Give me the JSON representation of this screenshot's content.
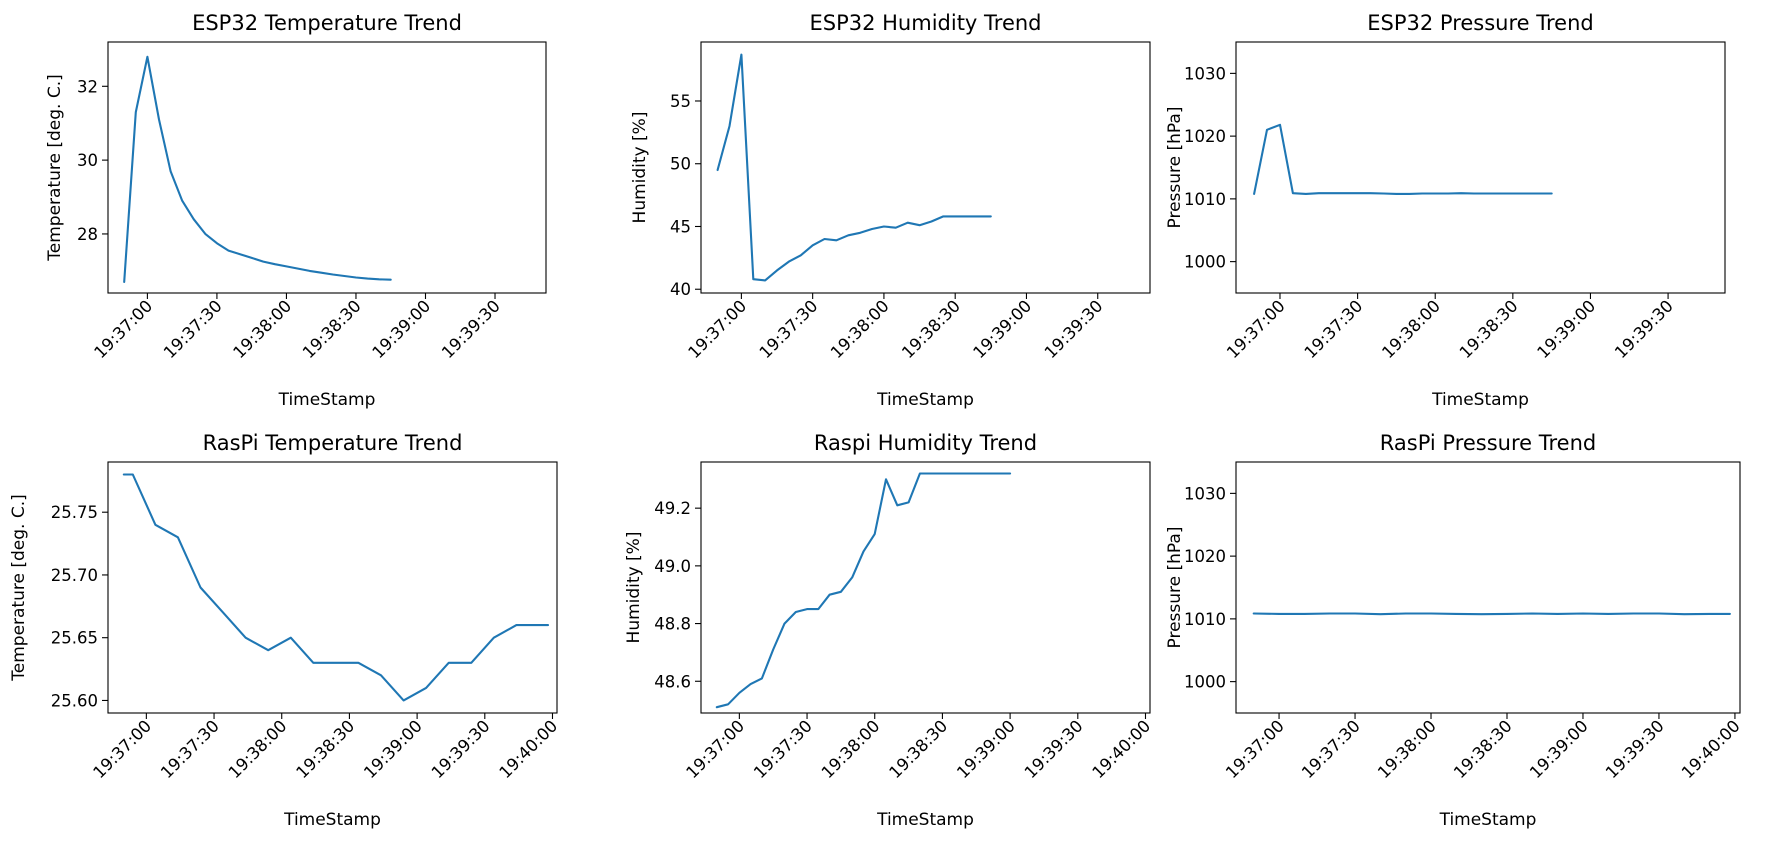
{
  "figure": {
    "background": "#ffffff",
    "line_color": "#1f77b4"
  },
  "chart_data": [
    {
      "type": "line",
      "title": "ESP32 Temperature Trend",
      "xlabel": "TimeStamp",
      "ylabel": "Temperature [deg. C.]",
      "xlim": [
        "19:36:43",
        "19:39:52"
      ],
      "ylim": [
        26.4,
        33.2
      ],
      "xticks": [
        "19:37:00",
        "19:37:30",
        "19:38:00",
        "19:38:30",
        "19:39:00",
        "19:39:30"
      ],
      "yticks": [
        28,
        30,
        32
      ],
      "grid": false,
      "series": [
        {
          "x": [
            "19:36:50",
            "19:36:55",
            "19:37:00",
            "19:37:05",
            "19:37:10",
            "19:37:15",
            "19:37:20",
            "19:37:25",
            "19:37:30",
            "19:37:35",
            "19:37:40",
            "19:37:45",
            "19:37:50",
            "19:37:55",
            "19:38:00",
            "19:38:05",
            "19:38:10",
            "19:38:15",
            "19:38:20",
            "19:38:25",
            "19:38:30",
            "19:38:35",
            "19:38:40",
            "19:38:45"
          ],
          "y": [
            26.7,
            31.3,
            32.8,
            31.1,
            29.7,
            28.9,
            28.4,
            28.0,
            27.75,
            27.55,
            27.45,
            27.35,
            27.25,
            27.18,
            27.12,
            27.06,
            27.0,
            26.95,
            26.9,
            26.86,
            26.82,
            26.79,
            26.77,
            26.76
          ]
        }
      ]
    },
    {
      "type": "line",
      "title": "ESP32 Humidity Trend",
      "xlabel": "TimeStamp",
      "ylabel": "Humidity [%]",
      "xlim": [
        "19:36:43",
        "19:39:52"
      ],
      "ylim": [
        39.7,
        59.7
      ],
      "xticks": [
        "19:37:00",
        "19:37:30",
        "19:38:00",
        "19:38:30",
        "19:39:00",
        "19:39:30"
      ],
      "yticks": [
        40,
        45,
        50,
        55
      ],
      "grid": false,
      "series": [
        {
          "x": [
            "19:36:50",
            "19:36:55",
            "19:37:00",
            "19:37:05",
            "19:37:10",
            "19:37:15",
            "19:37:20",
            "19:37:25",
            "19:37:30",
            "19:37:35",
            "19:37:40",
            "19:37:45",
            "19:37:50",
            "19:37:55",
            "19:38:00",
            "19:38:05",
            "19:38:10",
            "19:38:15",
            "19:38:20",
            "19:38:25",
            "19:38:30",
            "19:38:35",
            "19:38:40",
            "19:38:45"
          ],
          "y": [
            49.5,
            53.0,
            58.7,
            40.8,
            40.7,
            41.5,
            42.2,
            42.7,
            43.5,
            44.0,
            43.9,
            44.3,
            44.5,
            44.8,
            45.0,
            44.9,
            45.3,
            45.1,
            45.4,
            45.8,
            45.8,
            45.8,
            45.8,
            45.8
          ]
        }
      ]
    },
    {
      "type": "line",
      "title": "ESP32 Pressure Trend",
      "xlabel": "TimeStamp",
      "ylabel": "Pressure [hPa]",
      "xlim": [
        "19:36:43",
        "19:39:52"
      ],
      "ylim": [
        995,
        1035
      ],
      "xticks": [
        "19:37:00",
        "19:37:30",
        "19:38:00",
        "19:38:30",
        "19:39:00",
        "19:39:30"
      ],
      "yticks": [
        1000,
        1010,
        1020,
        1030
      ],
      "grid": false,
      "series": [
        {
          "x": [
            "19:36:50",
            "19:36:55",
            "19:37:00",
            "19:37:05",
            "19:37:10",
            "19:37:15",
            "19:37:20",
            "19:37:25",
            "19:37:30",
            "19:37:35",
            "19:37:40",
            "19:37:45",
            "19:37:50",
            "19:37:55",
            "19:38:00",
            "19:38:05",
            "19:38:10",
            "19:38:15",
            "19:38:20",
            "19:38:25",
            "19:38:30",
            "19:38:35",
            "19:38:40",
            "19:38:45"
          ],
          "y": [
            1010.8,
            1021.0,
            1021.8,
            1010.9,
            1010.8,
            1010.9,
            1010.9,
            1010.9,
            1010.9,
            1010.9,
            1010.85,
            1010.8,
            1010.8,
            1010.85,
            1010.85,
            1010.85,
            1010.9,
            1010.85,
            1010.85,
            1010.85,
            1010.85,
            1010.85,
            1010.85,
            1010.85
          ]
        }
      ]
    },
    {
      "type": "line",
      "title": "RasPi Temperature Trend",
      "xlabel": "TimeStamp",
      "ylabel": "Temperature [deg. C.]",
      "xlim": [
        "19:36:43",
        "19:40:02"
      ],
      "ylim": [
        25.59,
        25.79
      ],
      "xticks": [
        "19:37:00",
        "19:37:30",
        "19:38:00",
        "19:38:30",
        "19:39:00",
        "19:39:30",
        "19:40:00"
      ],
      "yticks": [
        25.6,
        25.65,
        25.7,
        25.75
      ],
      "grid": false,
      "series": [
        {
          "x": [
            "19:36:50",
            "19:36:54",
            "19:37:04",
            "19:37:14",
            "19:37:24",
            "19:37:34",
            "19:37:44",
            "19:37:54",
            "19:38:04",
            "19:38:14",
            "19:38:24",
            "19:38:34",
            "19:38:44",
            "19:38:54",
            "19:39:04",
            "19:39:14",
            "19:39:24",
            "19:39:34",
            "19:39:44",
            "19:39:54",
            "19:39:58"
          ],
          "y": [
            25.78,
            25.78,
            25.74,
            25.73,
            25.69,
            25.67,
            25.65,
            25.64,
            25.65,
            25.63,
            25.63,
            25.63,
            25.62,
            25.6,
            25.61,
            25.63,
            25.63,
            25.65,
            25.66,
            25.66,
            25.66
          ]
        }
      ]
    },
    {
      "type": "line",
      "title": "Raspi Humidity Trend",
      "xlabel": "TimeStamp",
      "ylabel": "Humidity [%]",
      "xlim": [
        "19:36:43",
        "19:40:02"
      ],
      "ylim": [
        48.49,
        49.36
      ],
      "xticks": [
        "19:37:00",
        "19:37:30",
        "19:38:00",
        "19:38:30",
        "19:39:00",
        "19:39:30",
        "19:40:00"
      ],
      "yticks": [
        48.6,
        48.8,
        49.0,
        49.2
      ],
      "grid": false,
      "series": [
        {
          "x": [
            "19:36:50",
            "19:36:55",
            "19:37:00",
            "19:37:05",
            "19:37:10",
            "19:37:15",
            "19:37:20",
            "19:37:25",
            "19:37:30",
            "19:37:35",
            "19:37:40",
            "19:37:45",
            "19:37:50",
            "19:37:55",
            "19:38:00",
            "19:38:05",
            "19:38:10",
            "19:38:15",
            "19:38:20",
            "19:38:25",
            "19:38:30",
            "19:38:35",
            "19:38:40",
            "19:38:45",
            "19:38:50",
            "19:38:55",
            "19:39:00"
          ],
          "y": [
            48.51,
            48.52,
            48.56,
            48.59,
            48.61,
            48.71,
            48.8,
            48.84,
            48.85,
            48.85,
            48.9,
            48.91,
            48.96,
            49.05,
            49.11,
            49.3,
            49.21,
            49.22,
            49.32,
            49.32,
            49.32,
            49.32,
            49.32,
            49.32,
            49.32,
            49.32,
            49.32
          ]
        }
      ]
    },
    {
      "type": "line",
      "title": "RasPi Pressure Trend",
      "xlabel": "TimeStamp",
      "ylabel": "Pressure [hPa]",
      "xlim": [
        "19:36:43",
        "19:40:02"
      ],
      "ylim": [
        995,
        1035
      ],
      "xticks": [
        "19:37:00",
        "19:37:30",
        "19:38:00",
        "19:38:30",
        "19:39:00",
        "19:39:30",
        "19:40:00"
      ],
      "yticks": [
        1000,
        1010,
        1020,
        1030
      ],
      "grid": false,
      "series": [
        {
          "x": [
            "19:36:50",
            "19:37:00",
            "19:37:10",
            "19:37:20",
            "19:37:30",
            "19:37:40",
            "19:37:50",
            "19:38:00",
            "19:38:10",
            "19:38:20",
            "19:38:30",
            "19:38:40",
            "19:38:50",
            "19:39:00",
            "19:39:10",
            "19:39:20",
            "19:39:30",
            "19:39:40",
            "19:39:50",
            "19:39:58"
          ],
          "y": [
            1010.85,
            1010.8,
            1010.8,
            1010.85,
            1010.85,
            1010.75,
            1010.85,
            1010.85,
            1010.8,
            1010.75,
            1010.8,
            1010.85,
            1010.8,
            1010.85,
            1010.8,
            1010.85,
            1010.85,
            1010.75,
            1010.8,
            1010.8
          ]
        }
      ]
    }
  ]
}
